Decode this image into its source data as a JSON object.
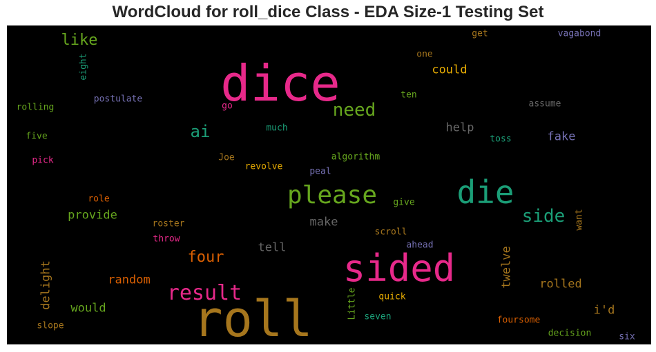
{
  "title": "WordCloud for roll_dice Class - EDA Size-1 Testing Set",
  "chart_data": {
    "type": "wordcloud",
    "background": "#000000",
    "words": [
      {
        "text": "dice",
        "weight": 1.0,
        "color": "#e7298a"
      },
      {
        "text": "roll",
        "weight": 1.0,
        "color": "#a6761d"
      },
      {
        "text": "sided",
        "weight": 0.78,
        "color": "#e7298a"
      },
      {
        "text": "die",
        "weight": 0.68,
        "color": "#1b9e77"
      },
      {
        "text": "please",
        "weight": 0.55,
        "color": "#66a61e"
      },
      {
        "text": "result",
        "weight": 0.45,
        "color": "#e7298a"
      },
      {
        "text": "need",
        "weight": 0.42,
        "color": "#66a61e"
      },
      {
        "text": "side",
        "weight": 0.42,
        "color": "#1b9e77"
      },
      {
        "text": "ai",
        "weight": 0.38,
        "color": "#1b9e77"
      },
      {
        "text": "four",
        "weight": 0.36,
        "color": "#d95f02"
      },
      {
        "text": "like",
        "weight": 0.34,
        "color": "#66a61e"
      },
      {
        "text": "could",
        "weight": 0.3,
        "color": "#e6ab02"
      },
      {
        "text": "help",
        "weight": 0.3,
        "color": "#666666"
      },
      {
        "text": "fake",
        "weight": 0.3,
        "color": "#7570b3"
      },
      {
        "text": "provide",
        "weight": 0.3,
        "color": "#66a61e"
      },
      {
        "text": "make",
        "weight": 0.3,
        "color": "#666666"
      },
      {
        "text": "tell",
        "weight": 0.3,
        "color": "#666666"
      },
      {
        "text": "random",
        "weight": 0.3,
        "color": "#d95f02"
      },
      {
        "text": "delight",
        "weight": 0.3,
        "color": "#a6761d"
      },
      {
        "text": "would",
        "weight": 0.3,
        "color": "#66a61e"
      },
      {
        "text": "twelve",
        "weight": 0.3,
        "color": "#a6761d"
      },
      {
        "text": "rolled",
        "weight": 0.3,
        "color": "#a6761d"
      },
      {
        "text": "i'd",
        "weight": 0.3,
        "color": "#a6761d"
      },
      {
        "text": "vagabond",
        "weight": 0.2,
        "color": "#7570b3"
      },
      {
        "text": "get",
        "weight": 0.2,
        "color": "#a6761d"
      },
      {
        "text": "one",
        "weight": 0.2,
        "color": "#a6761d"
      },
      {
        "text": "eight",
        "weight": 0.2,
        "color": "#1b9e77"
      },
      {
        "text": "postulate",
        "weight": 0.2,
        "color": "#7570b3"
      },
      {
        "text": "rolling",
        "weight": 0.2,
        "color": "#66a61e"
      },
      {
        "text": "ten",
        "weight": 0.2,
        "color": "#66a61e"
      },
      {
        "text": "assume",
        "weight": 0.2,
        "color": "#666666"
      },
      {
        "text": "go",
        "weight": 0.2,
        "color": "#e7298a"
      },
      {
        "text": "much",
        "weight": 0.2,
        "color": "#1b9e77"
      },
      {
        "text": "five",
        "weight": 0.2,
        "color": "#66a61e"
      },
      {
        "text": "toss",
        "weight": 0.2,
        "color": "#1b9e77"
      },
      {
        "text": "pick",
        "weight": 0.2,
        "color": "#e7298a"
      },
      {
        "text": "Joe",
        "weight": 0.2,
        "color": "#a6761d"
      },
      {
        "text": "algorithm",
        "weight": 0.2,
        "color": "#66a61e"
      },
      {
        "text": "revolve",
        "weight": 0.2,
        "color": "#e6ab02"
      },
      {
        "text": "peal",
        "weight": 0.2,
        "color": "#7570b3"
      },
      {
        "text": "role",
        "weight": 0.2,
        "color": "#d95f02"
      },
      {
        "text": "give",
        "weight": 0.2,
        "color": "#66a61e"
      },
      {
        "text": "want",
        "weight": 0.2,
        "color": "#a6761d"
      },
      {
        "text": "roster",
        "weight": 0.2,
        "color": "#a6761d"
      },
      {
        "text": "throw",
        "weight": 0.2,
        "color": "#e7298a"
      },
      {
        "text": "scroll",
        "weight": 0.2,
        "color": "#a6761d"
      },
      {
        "text": "ahead",
        "weight": 0.2,
        "color": "#7570b3"
      },
      {
        "text": "quick",
        "weight": 0.2,
        "color": "#e6ab02"
      },
      {
        "text": "Little",
        "weight": 0.2,
        "color": "#66a61e"
      },
      {
        "text": "seven",
        "weight": 0.2,
        "color": "#1b9e77"
      },
      {
        "text": "slope",
        "weight": 0.2,
        "color": "#a6761d"
      },
      {
        "text": "foursome",
        "weight": 0.2,
        "color": "#d95f02"
      },
      {
        "text": "decision",
        "weight": 0.2,
        "color": "#66a61e"
      },
      {
        "text": "six",
        "weight": 0.2,
        "color": "#7570b3"
      }
    ]
  }
}
